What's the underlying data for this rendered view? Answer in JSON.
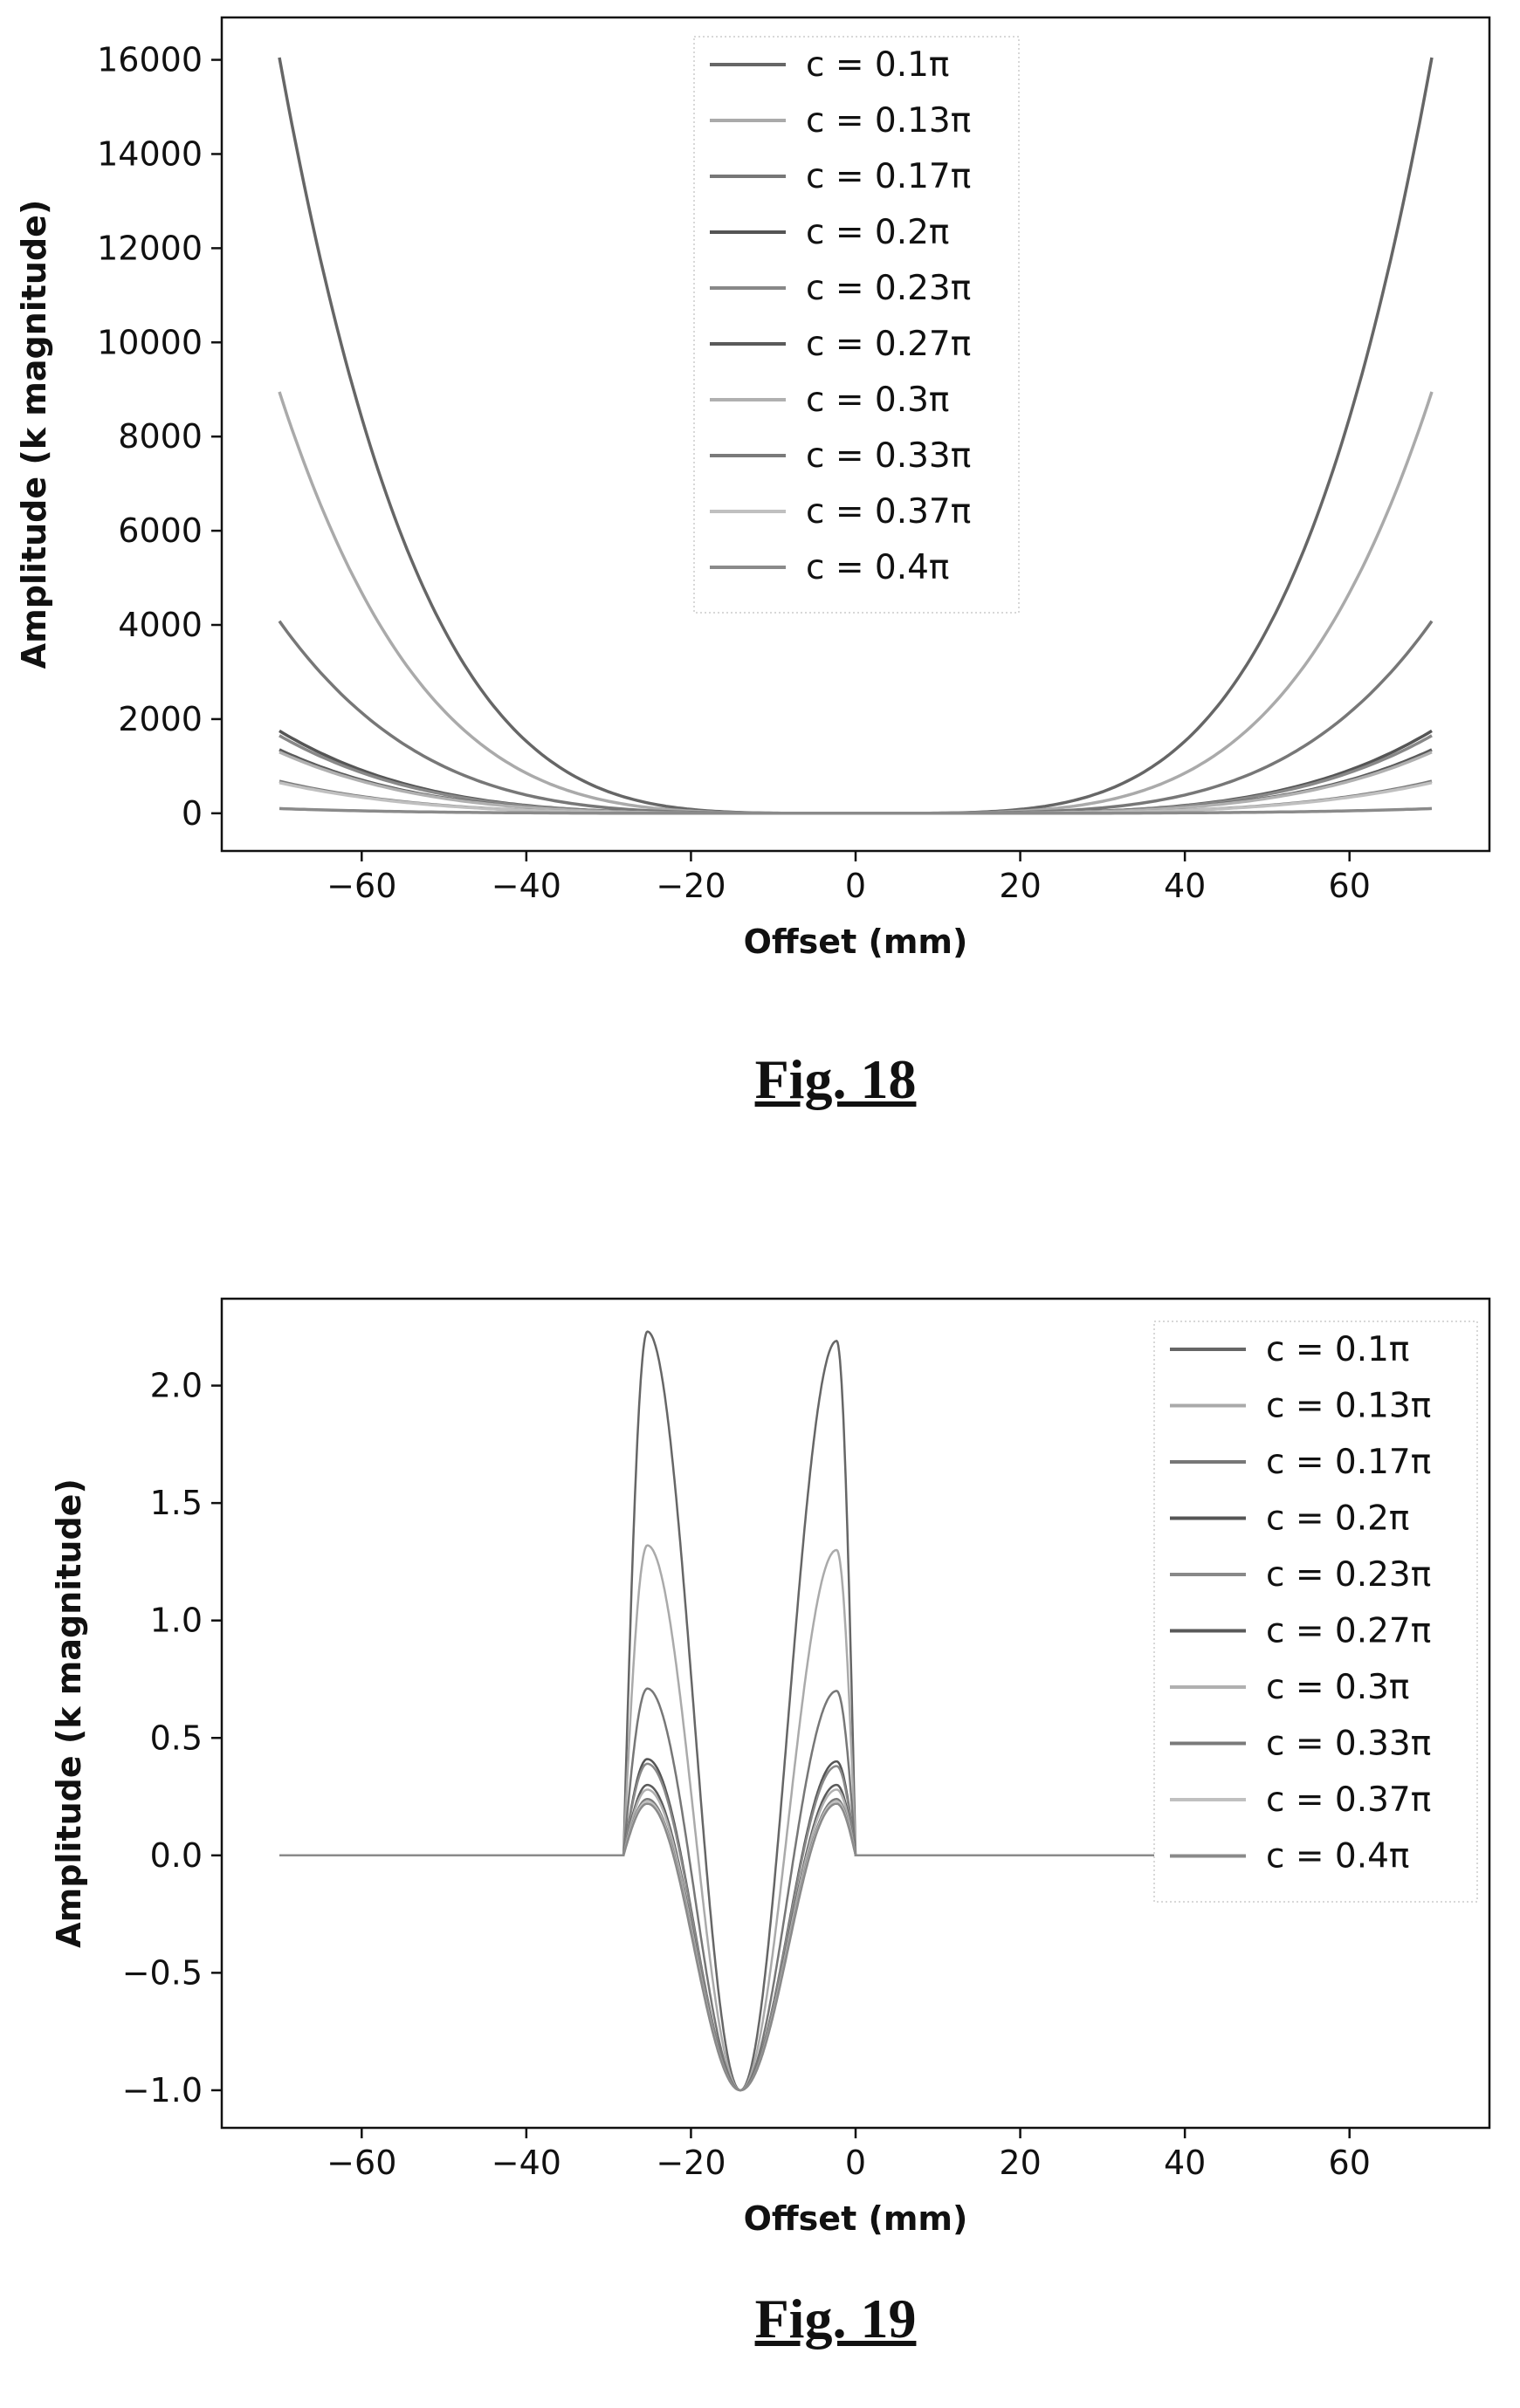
{
  "figures": [
    {
      "caption": "Fig. 18"
    },
    {
      "caption": "Fig. 19"
    }
  ],
  "chart_data": [
    {
      "type": "line",
      "title": "",
      "xlabel": "Offset (mm)",
      "ylabel": "Amplitude (k magnitude)",
      "xlim": [
        -77,
        77
      ],
      "ylim": [
        -800,
        16900
      ],
      "xticks": [
        -60,
        -40,
        -20,
        0,
        20,
        40,
        60
      ],
      "yticks": [
        0,
        2000,
        4000,
        6000,
        8000,
        10000,
        12000,
        14000,
        16000
      ],
      "legend_position": "upper center",
      "x": [
        -70,
        -60,
        -50,
        -40,
        -30,
        -20,
        -10,
        0,
        10,
        20,
        30,
        40,
        50,
        60,
        70
      ],
      "series": [
        {
          "name": "c = 0.1π",
          "color": "#666666",
          "values": [
            16050,
            8200,
            3950,
            1700,
            640,
            170,
            20,
            0,
            20,
            170,
            640,
            1700,
            3950,
            8200,
            16050
          ]
        },
        {
          "name": "c = 0.13π",
          "color": "#aaaaaa",
          "values": [
            8950,
            4560,
            2200,
            950,
            360,
            95,
            11,
            0,
            11,
            95,
            360,
            950,
            2200,
            4560,
            8950
          ]
        },
        {
          "name": "c = 0.17π",
          "color": "#777777",
          "values": [
            4080,
            2080,
            1000,
            430,
            165,
            45,
            5,
            0,
            5,
            45,
            165,
            430,
            1000,
            2080,
            4080
          ]
        },
        {
          "name": "c = 0.2π",
          "color": "#555555",
          "values": [
            1750,
            890,
            430,
            185,
            70,
            19,
            2,
            0,
            2,
            19,
            70,
            185,
            430,
            890,
            1750
          ]
        },
        {
          "name": "c = 0.23π",
          "color": "#888888",
          "values": [
            1650,
            840,
            405,
            175,
            66,
            18,
            2,
            0,
            2,
            18,
            66,
            175,
            405,
            840,
            1650
          ]
        },
        {
          "name": "c = 0.27π",
          "color": "#5a5a5a",
          "values": [
            1350,
            690,
            330,
            143,
            54,
            14,
            2,
            0,
            2,
            14,
            54,
            143,
            330,
            690,
            1350
          ]
        },
        {
          "name": "c = 0.3π",
          "color": "#b0b0b0",
          "values": [
            1300,
            660,
            320,
            138,
            52,
            14,
            2,
            0,
            2,
            14,
            52,
            138,
            320,
            660,
            1300
          ]
        },
        {
          "name": "c = 0.33π",
          "color": "#7a7a7a",
          "values": [
            680,
            345,
            166,
            72,
            27,
            7,
            1,
            0,
            1,
            7,
            27,
            72,
            166,
            345,
            680
          ]
        },
        {
          "name": "c = 0.37π",
          "color": "#c0c0c0",
          "values": [
            650,
            330,
            160,
            69,
            26,
            7,
            1,
            0,
            1,
            7,
            26,
            69,
            160,
            330,
            650
          ]
        },
        {
          "name": "c = 0.4π",
          "color": "#8a8a8a",
          "values": [
            100,
            51,
            25,
            11,
            4,
            1,
            0,
            0,
            0,
            1,
            4,
            11,
            25,
            51,
            100
          ]
        }
      ]
    },
    {
      "type": "line",
      "title": "",
      "xlabel": "Offset (mm)",
      "ylabel": "Amplitude (k magnitude)",
      "xlim": [
        -77,
        77
      ],
      "ylim": [
        -1.16,
        2.37
      ],
      "xticks": [
        -60,
        -40,
        -20,
        0,
        20,
        40,
        60
      ],
      "yticks": [
        -1.0,
        -0.5,
        0.0,
        0.5,
        1.0,
        1.5,
        2.0
      ],
      "legend_position": "upper right",
      "x": [
        -70,
        -28.5,
        -28,
        -27,
        -26,
        -25.5,
        -25,
        -24,
        -23,
        -22,
        -21,
        -20,
        -18,
        -16,
        -14,
        -12,
        -10,
        -8,
        -7,
        -6,
        -5,
        -4,
        -3,
        -2.5,
        -2,
        -1,
        0,
        70
      ],
      "series": [
        {
          "name": "c = 0.1π",
          "color": "#666666",
          "peaks": [
            2.23,
            2.19
          ]
        },
        {
          "name": "c = 0.13π",
          "color": "#aaaaaa",
          "peaks": [
            1.32,
            1.3
          ]
        },
        {
          "name": "c = 0.17π",
          "color": "#777777",
          "peaks": [
            0.71,
            0.7
          ]
        },
        {
          "name": "c = 0.2π",
          "color": "#555555",
          "peaks": [
            0.41,
            0.4
          ]
        },
        {
          "name": "c = 0.23π",
          "color": "#888888",
          "peaks": [
            0.39,
            0.38
          ]
        },
        {
          "name": "c = 0.27π",
          "color": "#5a5a5a",
          "peaks": [
            0.3,
            0.3
          ]
        },
        {
          "name": "c = 0.3π",
          "color": "#b0b0b0",
          "peaks": [
            0.28,
            0.28
          ]
        },
        {
          "name": "c = 0.33π",
          "color": "#7a7a7a",
          "peaks": [
            0.24,
            0.24
          ]
        },
        {
          "name": "c = 0.37π",
          "color": "#c0c0c0",
          "peaks": [
            0.23,
            0.23
          ]
        },
        {
          "name": "c = 0.4π",
          "color": "#8a8a8a",
          "peaks": [
            0.22,
            0.22
          ]
        }
      ],
      "trough": {
        "x": -14,
        "y": -1.0
      }
    }
  ]
}
